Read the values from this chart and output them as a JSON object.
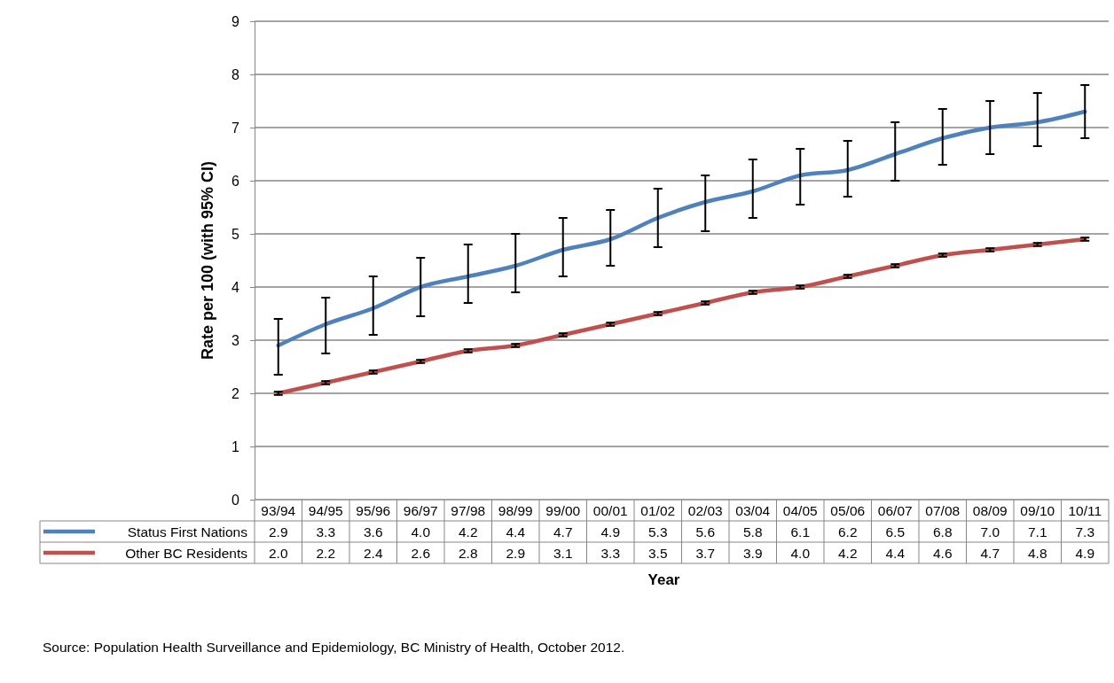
{
  "chart_data": {
    "type": "line",
    "xlabel": "Year",
    "ylabel": "Rate per 100 (with 95% CI)",
    "categories": [
      "93/94",
      "94/95",
      "95/96",
      "96/97",
      "97/98",
      "98/99",
      "99/00",
      "00/01",
      "01/02",
      "02/03",
      "03/04",
      "04/05",
      "05/06",
      "06/07",
      "07/08",
      "08/09",
      "09/10",
      "10/11"
    ],
    "series": [
      {
        "name": "Status First Nations",
        "color": "#4f81bd",
        "values": [
          2.9,
          3.3,
          3.6,
          4.0,
          4.2,
          4.4,
          4.7,
          4.9,
          5.3,
          5.6,
          5.8,
          6.1,
          6.2,
          6.5,
          6.8,
          7.0,
          7.1,
          7.3
        ],
        "value_labels": [
          "2.9",
          "3.3",
          "3.6",
          "4.0",
          "4.2",
          "4.4",
          "4.7",
          "4.9",
          "5.3",
          "5.6",
          "5.8",
          "6.1",
          "6.2",
          "6.5",
          "6.8",
          "7.0",
          "7.1",
          "7.3"
        ],
        "errors": [
          [
            2.35,
            3.4
          ],
          [
            2.75,
            3.8
          ],
          [
            3.1,
            4.2
          ],
          [
            3.45,
            4.55
          ],
          [
            3.7,
            4.8
          ],
          [
            3.9,
            5.0
          ],
          [
            4.2,
            5.3
          ],
          [
            4.4,
            5.45
          ],
          [
            4.75,
            5.85
          ],
          [
            5.05,
            6.1
          ],
          [
            5.3,
            6.4
          ],
          [
            5.55,
            6.6
          ],
          [
            5.7,
            6.75
          ],
          [
            6.0,
            7.1
          ],
          [
            6.3,
            7.35
          ],
          [
            6.5,
            7.5
          ],
          [
            6.65,
            7.65
          ],
          [
            6.8,
            7.8
          ]
        ]
      },
      {
        "name": "Other BC Residents",
        "color": "#c0504d",
        "values": [
          2.0,
          2.2,
          2.4,
          2.6,
          2.8,
          2.9,
          3.1,
          3.3,
          3.5,
          3.7,
          3.9,
          4.0,
          4.2,
          4.4,
          4.6,
          4.7,
          4.8,
          4.9
        ],
        "value_labels": [
          "2.0",
          "2.2",
          "2.4",
          "2.6",
          "2.8",
          "2.9",
          "3.1",
          "3.3",
          "3.5",
          "3.7",
          "3.9",
          "4.0",
          "4.2",
          "4.4",
          "4.6",
          "4.7",
          "4.8",
          "4.9"
        ],
        "errors": [
          0.03,
          0.03,
          0.03,
          0.03,
          0.03,
          0.03,
          0.03,
          0.03,
          0.03,
          0.03,
          0.03,
          0.03,
          0.03,
          0.03,
          0.03,
          0.03,
          0.03,
          0.03
        ]
      }
    ],
    "ylim": [
      0,
      9
    ],
    "yticks": [
      0,
      1,
      2,
      3,
      4,
      5,
      6,
      7,
      8,
      9
    ],
    "grid": "y",
    "legend": "bottom",
    "marker": "none",
    "line_style": "solid",
    "annotations": [
      "Source:  Population Health Surveillance and Epidemiology, BC Ministry of Health, October 2012."
    ]
  }
}
